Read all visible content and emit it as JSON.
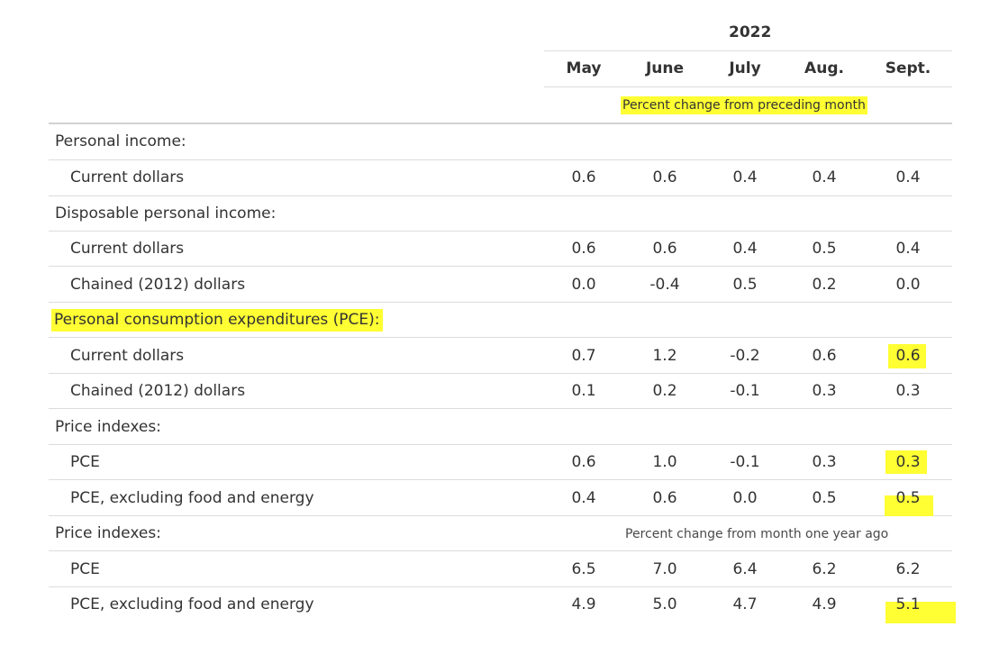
{
  "table": {
    "year": "2022",
    "columns": [
      "May",
      "June",
      "July",
      "Aug.",
      "Sept."
    ],
    "note_monthly": "Percent change from preceding month",
    "note_yearly": "Percent change from month one year ago",
    "rows": [
      {
        "label": "Personal income:",
        "values": []
      },
      {
        "label": "Current dollars",
        "values": [
          "0.6",
          "0.6",
          "0.4",
          "0.4",
          "0.4"
        ]
      },
      {
        "label": "Disposable personal income:",
        "values": []
      },
      {
        "label": "Current dollars",
        "values": [
          "0.6",
          "0.6",
          "0.4",
          "0.5",
          "0.4"
        ]
      },
      {
        "label": "Chained (2012) dollars",
        "values": [
          "0.0",
          "-0.4",
          "0.5",
          "0.2",
          "0.0"
        ]
      },
      {
        "label": "Personal consumption expenditures (PCE):",
        "values": []
      },
      {
        "label": "Current dollars",
        "values": [
          "0.7",
          "1.2",
          "-0.2",
          "0.6",
          "0.6"
        ]
      },
      {
        "label": "Chained (2012) dollars",
        "values": [
          "0.1",
          "0.2",
          "-0.1",
          "0.3",
          "0.3"
        ]
      },
      {
        "label": "Price indexes:",
        "values": []
      },
      {
        "label": "PCE",
        "values": [
          "0.6",
          "1.0",
          "-0.1",
          "0.3",
          "0.3"
        ]
      },
      {
        "label": "PCE, excluding food and energy",
        "values": [
          "0.4",
          "0.6",
          "0.0",
          "0.5",
          "0.5"
        ]
      },
      {
        "label": "Price indexes:",
        "values": []
      },
      {
        "label": "PCE",
        "values": [
          "6.5",
          "7.0",
          "6.4",
          "6.2",
          "6.2"
        ]
      },
      {
        "label": "PCE, excluding food and energy",
        "values": [
          "4.9",
          "5.0",
          "4.7",
          "4.9",
          "5.1"
        ]
      }
    ]
  },
  "highlight_color": "#ffff33"
}
